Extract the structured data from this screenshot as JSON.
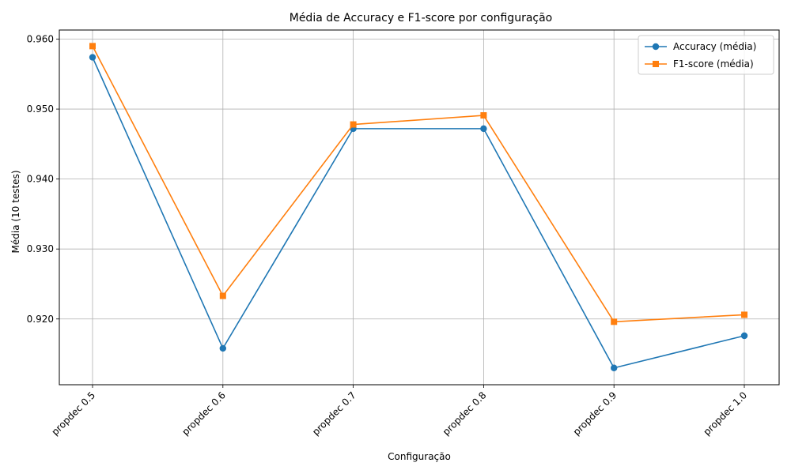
{
  "chart_data": {
    "type": "line",
    "title": "Média de Accuracy e F1-score por configuração",
    "xlabel": "Configuração",
    "ylabel": "Média (10 testes)",
    "categories": [
      "propdec 0.5",
      "propdec 0.6",
      "propdec 0.7",
      "propdec 0.8",
      "propdec 0.9",
      "propdec 1.0"
    ],
    "yticks": [
      "0.920",
      "0.930",
      "0.940",
      "0.950",
      "0.960"
    ],
    "ylim": [
      0.9106,
      0.9613
    ],
    "grid": true,
    "legend_position": "top-right",
    "series": [
      {
        "name": "Accuracy (média)",
        "color": "#1f77b4",
        "marker": "circle",
        "values": [
          0.9574,
          0.9158,
          0.9472,
          0.9472,
          0.913,
          0.9176
        ]
      },
      {
        "name": "F1-score (média)",
        "color": "#ff7f0e",
        "marker": "square",
        "values": [
          0.959,
          0.9233,
          0.9478,
          0.9491,
          0.9196,
          0.9206
        ]
      }
    ]
  }
}
